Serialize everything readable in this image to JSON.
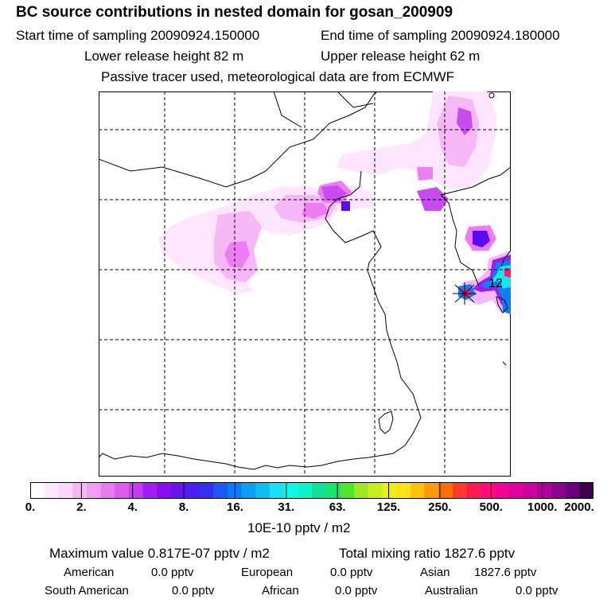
{
  "header": {
    "title": "BC  source contributions in nested domain for gosan_200909",
    "start_time": "Start time of sampling 20090924.150000",
    "end_time": "End time of sampling 20090924.180000",
    "lower_height": "Lower release height   82 m",
    "upper_height": "Upper release height   62 m",
    "tracer_note": "Passive tracer used, meteorological data are from ECMWF"
  },
  "map": {
    "receptor_label": "12",
    "grid_style": "dashed",
    "plume_colors": [
      "#ffe5ff",
      "#f8b8f8",
      "#ee7cf4",
      "#c84cf0",
      "#9d1af2",
      "#5a0af0",
      "#0c7ef7",
      "#13e8f0",
      "#27e7a9",
      "#8ee41c",
      "#ff1d74"
    ]
  },
  "colorbar": {
    "segments": [
      "#ffffff",
      "#ffe8ff",
      "#fcd6fc",
      "#f6b9f6",
      "#f19ef3",
      "#e97ef1",
      "#dc5cf0",
      "#c43df3",
      "#a21df2",
      "#8b0cf0",
      "#6814ef",
      "#4a1ef0",
      "#3131ef",
      "#1c59f4",
      "#0b7cf5",
      "#0c9ef7",
      "#0fbdf5",
      "#1ae0f5",
      "#12f8e8",
      "#0df5c8",
      "#12e09a",
      "#18e56c",
      "#4ce62e",
      "#a0e626",
      "#c9ec1c",
      "#eaef17",
      "#ffe115",
      "#ffc010",
      "#ff990c",
      "#ff6d06",
      "#ff3a2c",
      "#ff1b50",
      "#ff0a7a",
      "#f40093",
      "#e0009c",
      "#cc00a0",
      "#b2009c",
      "#8e0090",
      "#6a0080",
      "#3d004f"
    ],
    "labels": [
      "0.",
      "2.",
      "4.",
      "8.",
      "16.",
      "31.",
      "63.",
      "125.",
      "250.",
      "500.",
      "1000.",
      "2000."
    ],
    "units": "10E-10 pptv / m2"
  },
  "stats": {
    "max_value": "Maximum value  0.817E-07 pptv / m2",
    "total_mixing": "Total mixing ratio     1827.6 pptv",
    "american_label": "American",
    "american_value": "0.0 pptv",
    "european_label": "European",
    "european_value": "0.0 pptv",
    "asian_label": "Asian",
    "asian_value": "1827.6 pptv",
    "south_american_label": "South American",
    "south_american_value": "0.0 pptv",
    "african_label": "African",
    "african_value": "0.0 pptv",
    "australian_label": "Australian",
    "australian_value": "0.0 pptv"
  }
}
